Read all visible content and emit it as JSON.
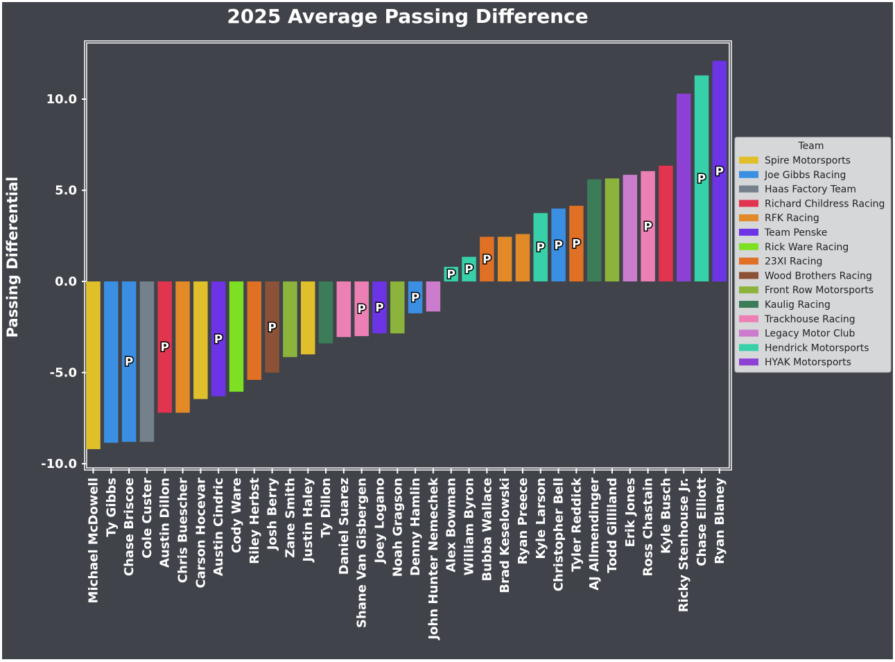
{
  "chart_data": {
    "type": "bar",
    "title": "2025 Average Passing Difference",
    "xlabel": "",
    "ylabel": "Passing Differential",
    "ylim": [
      -10.3,
      13.2
    ],
    "yticks": [
      {
        "value": 10,
        "label": "10.0"
      },
      {
        "value": 5,
        "label": "5.0"
      },
      {
        "value": 0,
        "label": "0.0"
      },
      {
        "value": -5,
        "label": "-5.0"
      },
      {
        "value": -10,
        "label": "-10.0"
      }
    ],
    "grid": false,
    "legend_position": "right",
    "legend_title": "Team",
    "colors": {
      "background": "#41434b",
      "text": "#ffffff",
      "axes": "#ffffff",
      "legend_bg": "#d6d7d9"
    },
    "point_marker_label": "P",
    "teams": [
      {
        "name": "Spire Motorsports",
        "color": "#e0c02a"
      },
      {
        "name": "Joe Gibbs Racing",
        "color": "#3b8fe3"
      },
      {
        "name": "Haas Factory Team",
        "color": "#74808c"
      },
      {
        "name": "Richard Childress Racing",
        "color": "#e0344f"
      },
      {
        "name": "RFK Racing",
        "color": "#e28a28"
      },
      {
        "name": "Team Penske",
        "color": "#6c34e4"
      },
      {
        "name": "Rick Ware Racing",
        "color": "#7ee022"
      },
      {
        "name": "23XI Racing",
        "color": "#e07024"
      },
      {
        "name": "Wood Brothers Racing",
        "color": "#8c5238"
      },
      {
        "name": "Front Row Motorsports",
        "color": "#8cb43c"
      },
      {
        "name": "Kaulig Racing",
        "color": "#3c7c58"
      },
      {
        "name": "Trackhouse Racing",
        "color": "#ec80b4"
      },
      {
        "name": "Legacy Motor Club",
        "color": "#cc7ccc"
      },
      {
        "name": "Hendrick Motorsports",
        "color": "#38d0a8"
      },
      {
        "name": "HYAK Motorsports",
        "color": "#8c40d4"
      }
    ],
    "bars": [
      {
        "driver": "Michael McDowell",
        "value": -9.2,
        "team": "Spire Motorsports",
        "marker": false
      },
      {
        "driver": "Ty Gibbs",
        "value": -8.85,
        "team": "Joe Gibbs Racing",
        "marker": false
      },
      {
        "driver": "Chase Briscoe",
        "value": -8.8,
        "team": "Joe Gibbs Racing",
        "marker": true
      },
      {
        "driver": "Cole Custer",
        "value": -8.8,
        "team": "Haas Factory Team",
        "marker": false
      },
      {
        "driver": "Austin Dillon",
        "value": -7.2,
        "team": "Richard Childress Racing",
        "marker": true
      },
      {
        "driver": "Chris Buescher",
        "value": -7.2,
        "team": "RFK Racing",
        "marker": false
      },
      {
        "driver": "Carson Hocevar",
        "value": -6.45,
        "team": "Spire Motorsports",
        "marker": false
      },
      {
        "driver": "Austin Cindric",
        "value": -6.3,
        "team": "Team Penske",
        "marker": true
      },
      {
        "driver": "Cody Ware",
        "value": -6.05,
        "team": "Rick Ware Racing",
        "marker": false
      },
      {
        "driver": "Riley Herbst",
        "value": -5.4,
        "team": "23XI Racing",
        "marker": false
      },
      {
        "driver": "Josh Berry",
        "value": -5.0,
        "team": "Wood Brothers Racing",
        "marker": true
      },
      {
        "driver": "Zane Smith",
        "value": -4.15,
        "team": "Front Row Motorsports",
        "marker": false
      },
      {
        "driver": "Justin Haley",
        "value": -4.0,
        "team": "Spire Motorsports",
        "marker": false
      },
      {
        "driver": "Ty Dillon",
        "value": -3.4,
        "team": "Kaulig Racing",
        "marker": false
      },
      {
        "driver": "Daniel Suarez",
        "value": -3.05,
        "team": "Trackhouse Racing",
        "marker": false
      },
      {
        "driver": "Shane Van Gisbergen",
        "value": -3.0,
        "team": "Trackhouse Racing",
        "marker": true
      },
      {
        "driver": "Joey Logano",
        "value": -2.85,
        "team": "Team Penske",
        "marker": true
      },
      {
        "driver": "Noah Gragson",
        "value": -2.85,
        "team": "Front Row Motorsports",
        "marker": false
      },
      {
        "driver": "Denny Hamlin",
        "value": -1.75,
        "team": "Joe Gibbs Racing",
        "marker": true
      },
      {
        "driver": "John Hunter Nemechek",
        "value": -1.65,
        "team": "Legacy Motor Club",
        "marker": false
      },
      {
        "driver": "Alex Bowman",
        "value": 0.8,
        "team": "Hendrick Motorsports",
        "marker": true
      },
      {
        "driver": "William Byron",
        "value": 1.35,
        "team": "Hendrick Motorsports",
        "marker": true
      },
      {
        "driver": "Bubba Wallace",
        "value": 2.45,
        "team": "23XI Racing",
        "marker": true
      },
      {
        "driver": "Brad Keselowski",
        "value": 2.45,
        "team": "RFK Racing",
        "marker": false
      },
      {
        "driver": "Ryan Preece",
        "value": 2.6,
        "team": "RFK Racing",
        "marker": false
      },
      {
        "driver": "Kyle Larson",
        "value": 3.75,
        "team": "Hendrick Motorsports",
        "marker": true
      },
      {
        "driver": "Christopher Bell",
        "value": 4.0,
        "team": "Joe Gibbs Racing",
        "marker": true
      },
      {
        "driver": "Tyler Reddick",
        "value": 4.15,
        "team": "23XI Racing",
        "marker": true
      },
      {
        "driver": "AJ Allmendinger",
        "value": 5.6,
        "team": "Kaulig Racing",
        "marker": false
      },
      {
        "driver": "Todd Gilliland",
        "value": 5.65,
        "team": "Front Row Motorsports",
        "marker": false
      },
      {
        "driver": "Erik Jones",
        "value": 5.85,
        "team": "Legacy Motor Club",
        "marker": false
      },
      {
        "driver": "Ross Chastain",
        "value": 6.05,
        "team": "Trackhouse Racing",
        "marker": true
      },
      {
        "driver": "Kyle Busch",
        "value": 6.35,
        "team": "Richard Childress Racing",
        "marker": false
      },
      {
        "driver": "Ricky Stenhouse Jr.",
        "value": 10.3,
        "team": "HYAK Motorsports",
        "marker": false
      },
      {
        "driver": "Chase Elliott",
        "value": 11.3,
        "team": "Hendrick Motorsports",
        "marker": true
      },
      {
        "driver": "Ryan Blaney",
        "value": 12.1,
        "team": "Team Penske",
        "marker": true
      }
    ]
  }
}
